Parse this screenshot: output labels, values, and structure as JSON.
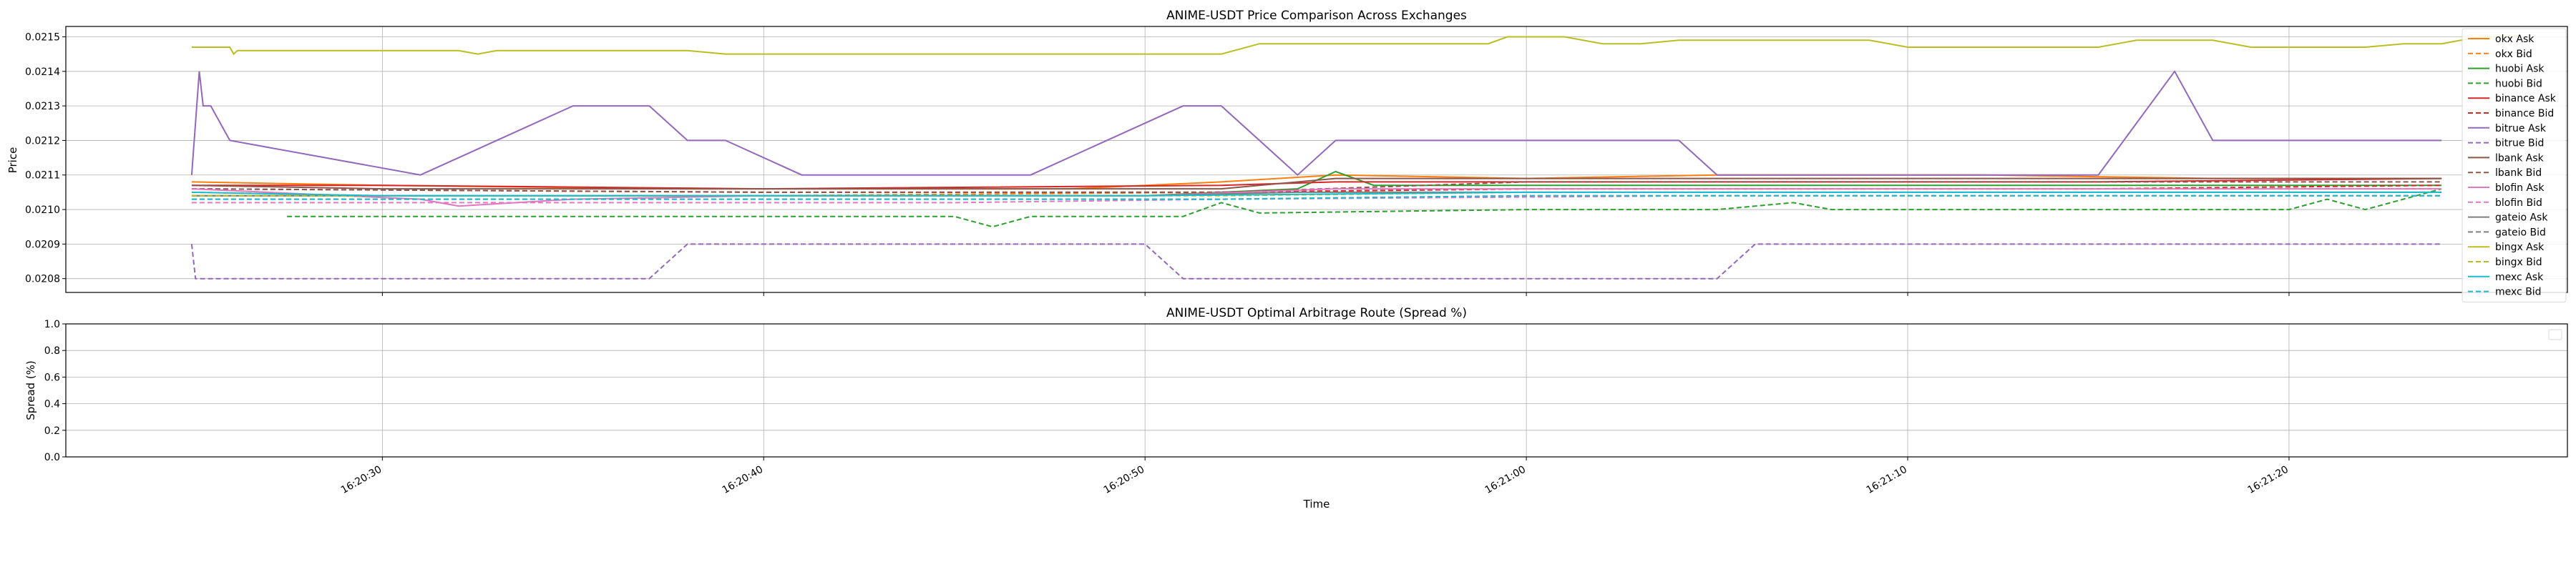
{
  "chart_data": [
    {
      "type": "line",
      "title": "ANIME-USDT Price Comparison Across Exchanges",
      "xlabel": "",
      "ylabel": "Price",
      "xlim": [
        "16:20:21.7",
        "16:21:27.3"
      ],
      "ylim": [
        0.02076,
        0.02153
      ],
      "yticks": [
        "0.0208",
        "0.0209",
        "0.0210",
        "0.0211",
        "0.0212",
        "0.0213",
        "0.0214",
        "0.0215"
      ],
      "grid": true,
      "legend": "right, outside",
      "series": [
        {
          "name": "okx Ask",
          "color": "#ff7f0e",
          "dash": "solid",
          "points": [
            [
              "16:20:25",
              0.02108
            ],
            [
              "16:20:30",
              0.02107
            ],
            [
              "16:20:38",
              0.02106
            ],
            [
              "16:20:48",
              0.02106
            ],
            [
              "16:20:52",
              0.02108
            ],
            [
              "16:20:55",
              0.0211
            ],
            [
              "16:21:00",
              0.02109
            ],
            [
              "16:21:05",
              0.0211
            ],
            [
              "16:21:12",
              0.0211
            ],
            [
              "16:21:18",
              0.02109
            ],
            [
              "16:21:24",
              0.02109
            ]
          ]
        },
        {
          "name": "okx Bid",
          "color": "#ff7f0e",
          "dash": "dashed",
          "points": [
            [
              "16:20:25",
              0.02105
            ],
            [
              "16:20:30",
              0.02104
            ],
            [
              "16:20:40",
              0.02104
            ],
            [
              "16:20:52",
              0.02105
            ],
            [
              "16:21:00",
              0.02106
            ],
            [
              "16:21:10",
              0.02106
            ],
            [
              "16:21:24",
              0.02106
            ]
          ]
        },
        {
          "name": "huobi Ask",
          "color": "#2ca02c",
          "dash": "solid",
          "points": [
            [
              "16:20:25",
              0.02104
            ],
            [
              "16:20:30",
              0.02104
            ],
            [
              "16:20:40",
              0.02104
            ],
            [
              "16:20:50",
              0.02104
            ],
            [
              "16:20:54",
              0.02106
            ],
            [
              "16:20:55",
              0.02111
            ],
            [
              "16:20:56",
              0.02107
            ],
            [
              "16:21:00",
              0.02107
            ],
            [
              "16:21:10",
              0.02107
            ],
            [
              "16:21:24",
              0.02107
            ]
          ]
        },
        {
          "name": "huobi Bid",
          "color": "#2ca02c",
          "dash": "dashed",
          "points": [
            [
              "16:20:27.5",
              0.02098
            ],
            [
              "16:20:32",
              0.02098
            ],
            [
              "16:20:40",
              0.02098
            ],
            [
              "16:20:45",
              0.02098
            ],
            [
              "16:20:46",
              0.02095
            ],
            [
              "16:20:47",
              0.02098
            ],
            [
              "16:20:51",
              0.02098
            ],
            [
              "16:20:52",
              0.02102
            ],
            [
              "16:20:53",
              0.02099
            ],
            [
              "16:21:00",
              0.021
            ],
            [
              "16:21:05",
              0.021
            ],
            [
              "16:21:07",
              0.02102
            ],
            [
              "16:21:08",
              0.021
            ],
            [
              "16:21:20",
              0.021
            ],
            [
              "16:21:21",
              0.02103
            ],
            [
              "16:21:22",
              0.021
            ],
            [
              "16:21:24",
              0.02106
            ]
          ]
        },
        {
          "name": "binance Ask",
          "color": "#d62728",
          "dash": "solid",
          "points": [
            [
              "16:20:25",
              0.02107
            ],
            [
              "16:20:30",
              0.02107
            ],
            [
              "16:20:40",
              0.02106
            ],
            [
              "16:20:52",
              0.02107
            ],
            [
              "16:20:55",
              0.02108
            ],
            [
              "16:21:05",
              0.02108
            ],
            [
              "16:21:15",
              0.02108
            ],
            [
              "16:21:24",
              0.02109
            ]
          ]
        },
        {
          "name": "binance Bid",
          "color": "#d62728",
          "dash": "dashed",
          "points": [
            [
              "16:20:25",
              0.02106
            ],
            [
              "16:20:40",
              0.02105
            ],
            [
              "16:20:52",
              0.02105
            ],
            [
              "16:21:00",
              0.02106
            ],
            [
              "16:21:15",
              0.02106
            ],
            [
              "16:21:24",
              0.02107
            ]
          ]
        },
        {
          "name": "bitrue Ask",
          "color": "#9467bd",
          "dash": "solid",
          "points": [
            [
              "16:20:25",
              0.0211
            ],
            [
              "16:20:25.2",
              0.0214
            ],
            [
              "16:20:25.3",
              0.0213
            ],
            [
              "16:20:25.5",
              0.0213
            ],
            [
              "16:20:26",
              0.0212
            ],
            [
              "16:20:31",
              0.0211
            ],
            [
              "16:20:35",
              0.0213
            ],
            [
              "16:20:37",
              0.0213
            ],
            [
              "16:20:38",
              0.0212
            ],
            [
              "16:20:39",
              0.0212
            ],
            [
              "16:20:41",
              0.0211
            ],
            [
              "16:20:47",
              0.0211
            ],
            [
              "16:20:51",
              0.0213
            ],
            [
              "16:20:52",
              0.0213
            ],
            [
              "16:20:54",
              0.0211
            ],
            [
              "16:20:55",
              0.0212
            ],
            [
              "16:21:04",
              0.0212
            ],
            [
              "16:21:05",
              0.0211
            ],
            [
              "16:21:15",
              0.0211
            ],
            [
              "16:21:17",
              0.0214
            ],
            [
              "16:21:18",
              0.0212
            ],
            [
              "16:21:24",
              0.0212
            ]
          ]
        },
        {
          "name": "bitrue Bid",
          "color": "#9467bd",
          "dash": "dashed",
          "points": [
            [
              "16:20:25",
              0.0209
            ],
            [
              "16:20:25.1",
              0.0208
            ],
            [
              "16:20:37",
              0.0208
            ],
            [
              "16:20:38",
              0.0209
            ],
            [
              "16:20:50",
              0.0209
            ],
            [
              "16:20:51",
              0.0208
            ],
            [
              "16:21:05",
              0.0208
            ],
            [
              "16:21:06",
              0.0209
            ],
            [
              "16:21:24",
              0.0209
            ]
          ]
        },
        {
          "name": "lbank Ask",
          "color": "#8c564b",
          "dash": "solid",
          "points": [
            [
              "16:20:25",
              0.02107
            ],
            [
              "16:20:30",
              0.02106
            ],
            [
              "16:20:40",
              0.02106
            ],
            [
              "16:20:52",
              0.02106
            ],
            [
              "16:20:55",
              0.02109
            ],
            [
              "16:21:00",
              0.02109
            ],
            [
              "16:21:10",
              0.02109
            ],
            [
              "16:21:24",
              0.02109
            ]
          ]
        },
        {
          "name": "lbank Bid",
          "color": "#8c564b",
          "dash": "dashed",
          "points": [
            [
              "16:20:25",
              0.02106
            ],
            [
              "16:20:40",
              0.02105
            ],
            [
              "16:20:52",
              0.02105
            ],
            [
              "16:21:00",
              0.02108
            ],
            [
              "16:21:10",
              0.02108
            ],
            [
              "16:21:24",
              0.02108
            ]
          ]
        },
        {
          "name": "blofin Ask",
          "color": "#e377c2",
          "dash": "solid",
          "points": [
            [
              "16:20:25",
              0.02106
            ],
            [
              "16:20:31",
              0.02103
            ],
            [
              "16:20:32",
              0.02101
            ],
            [
              "16:20:35",
              0.02103
            ],
            [
              "16:20:40",
              0.02104
            ],
            [
              "16:20:50",
              0.02104
            ],
            [
              "16:20:55",
              0.02106
            ],
            [
              "16:21:05",
              0.02106
            ],
            [
              "16:21:15",
              0.02106
            ],
            [
              "16:21:24",
              0.02106
            ]
          ]
        },
        {
          "name": "blofin Bid",
          "color": "#e377c2",
          "dash": "dashed",
          "points": [
            [
              "16:20:25",
              0.02102
            ],
            [
              "16:20:35",
              0.02102
            ],
            [
              "16:20:45",
              0.02102
            ],
            [
              "16:20:52",
              0.02103
            ],
            [
              "16:21:05",
              0.02104
            ],
            [
              "16:21:15",
              0.02104
            ],
            [
              "16:21:24",
              0.02104
            ]
          ]
        },
        {
          "name": "gateio Ask",
          "color": "#7f7f7f",
          "dash": "solid",
          "points": [
            [
              "16:20:25",
              0.02104
            ],
            [
              "16:20:30",
              0.02104
            ],
            [
              "16:20:40",
              0.02104
            ],
            [
              "16:20:50",
              0.02104
            ],
            [
              "16:20:54",
              0.02105
            ],
            [
              "16:21:00",
              0.02105
            ],
            [
              "16:21:10",
              0.02105
            ],
            [
              "16:21:24",
              0.02105
            ]
          ]
        },
        {
          "name": "gateio Bid",
          "color": "#7f7f7f",
          "dash": "dashed",
          "points": [
            [
              "16:20:25",
              0.02103
            ],
            [
              "16:20:40",
              0.02103
            ],
            [
              "16:20:52",
              0.02103
            ],
            [
              "16:21:00",
              0.02104
            ],
            [
              "16:21:10",
              0.02104
            ],
            [
              "16:21:24",
              0.02104
            ]
          ]
        },
        {
          "name": "bingx Ask",
          "color": "#bcbd22",
          "dash": "solid",
          "points": [
            [
              "16:20:25",
              0.02147
            ],
            [
              "16:20:26",
              0.02147
            ],
            [
              "16:20:26.1",
              0.02145
            ],
            [
              "16:20:26.2",
              0.02146
            ],
            [
              "16:20:32",
              0.02146
            ],
            [
              "16:20:32.5",
              0.02145
            ],
            [
              "16:20:33",
              0.02146
            ],
            [
              "16:20:38",
              0.02146
            ],
            [
              "16:20:39",
              0.02145
            ],
            [
              "16:20:52",
              0.02145
            ],
            [
              "16:20:53",
              0.02148
            ],
            [
              "16:20:59",
              0.02148
            ],
            [
              "16:20:59.5",
              0.0215
            ],
            [
              "16:21:01",
              0.0215
            ],
            [
              "16:21:02",
              0.02148
            ],
            [
              "16:21:03",
              0.02148
            ],
            [
              "16:21:04",
              0.02149
            ],
            [
              "16:21:09",
              0.02149
            ],
            [
              "16:21:10",
              0.02147
            ],
            [
              "16:21:15",
              0.02147
            ],
            [
              "16:21:16",
              0.02149
            ],
            [
              "16:21:18",
              0.02149
            ],
            [
              "16:21:19",
              0.02147
            ],
            [
              "16:21:22",
              0.02147
            ],
            [
              "16:21:23",
              0.02148
            ],
            [
              "16:21:24",
              0.02148
            ],
            [
              "16:21:25",
              0.0215
            ],
            [
              "16:21:26",
              0.0215
            ]
          ]
        },
        {
          "name": "bingx Bid",
          "color": "#bcbd22",
          "dash": "dashed",
          "points": [
            [
              "16:20:25",
              0.02104
            ],
            [
              "16:20:40",
              0.02104
            ],
            [
              "16:20:52",
              0.02104
            ],
            [
              "16:21:00",
              0.02105
            ],
            [
              "16:21:10",
              0.02105
            ],
            [
              "16:21:24",
              0.02105
            ]
          ]
        },
        {
          "name": "mexc Ask",
          "color": "#17becf",
          "dash": "solid",
          "points": [
            [
              "16:20:25",
              0.02105
            ],
            [
              "16:20:30",
              0.02104
            ],
            [
              "16:20:40",
              0.02104
            ],
            [
              "16:20:50",
              0.02104
            ],
            [
              "16:21:00",
              0.02105
            ],
            [
              "16:21:10",
              0.02105
            ],
            [
              "16:21:24",
              0.02105
            ]
          ]
        },
        {
          "name": "mexc Bid",
          "color": "#17becf",
          "dash": "dashed",
          "points": [
            [
              "16:20:25",
              0.02103
            ],
            [
              "16:20:40",
              0.02103
            ],
            [
              "16:20:52",
              0.02103
            ],
            [
              "16:21:00",
              0.02104
            ],
            [
              "16:21:10",
              0.02104
            ],
            [
              "16:21:24",
              0.02104
            ]
          ]
        }
      ]
    },
    {
      "type": "line",
      "title": "ANIME-USDT Optimal Arbitrage Route (Spread %)",
      "xlabel": "Time",
      "ylabel": "Spread (%)",
      "xlim": [
        "16:20:21.7",
        "16:21:27.3"
      ],
      "ylim": [
        0.0,
        1.0
      ],
      "yticks": [
        "0.0",
        "0.2",
        "0.4",
        "0.6",
        "0.8",
        "1.0"
      ],
      "xticks": [
        "16:20:30",
        "16:20:40",
        "16:20:50",
        "16:21:00",
        "16:21:10",
        "16:21:20"
      ],
      "grid": true,
      "legend": "top-right (empty)",
      "series": []
    }
  ]
}
